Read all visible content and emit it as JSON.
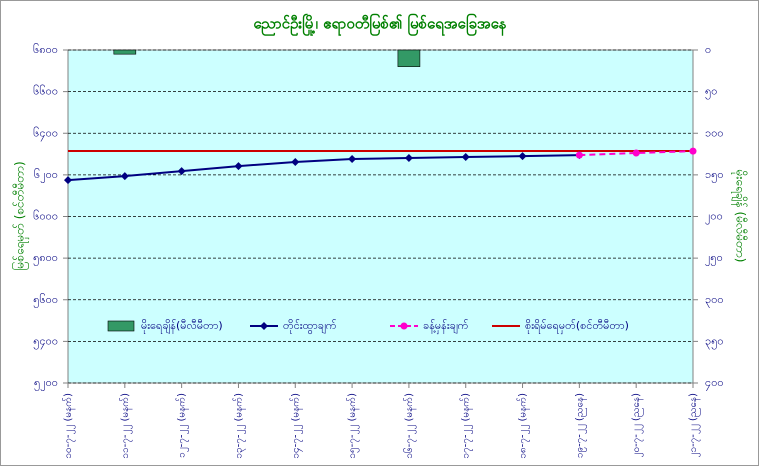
{
  "chart_data": {
    "type": "combo",
    "title": "ညောင်ဦးမြို့၊ ဧရာဝတီမြစ်၏ မြစ်ရေအခြေအနေ",
    "ylabel": "မြစ်ရေမှတ် (စင်တီမီတာ)",
    "y2label": "မိုးရေချိန် (မီလီမီတာ)",
    "categories": [
      "၁၀-၇-၂၂ (မနက်)",
      "၁၁-၇-၂၂ (မနက်)",
      "၁၂-၇-၂၂ (မနက်)",
      "၁၃-၇-၂၂ (မနက်)",
      "၁၄-၇-၂၂ (မနက်)",
      "၁၅-၇-၂၂ (မနက်)",
      "၁၆-၇-၂၂ (မနက်)",
      "၁၇-၇-၂၂ (မနက်)",
      "၁၈-၇-၂၂ (မနက်)",
      "၁၉-၇-၂၂ (ညနေ)",
      "၂၀-၇-၂၂ (ညနေ)",
      "၂၁-၇-၂၂ (ညနေ)"
    ],
    "series": [
      {
        "name": "မိုးရေချိန်(မီလီမီတာ)",
        "kind": "bar",
        "axis": "y2",
        "color": "#339966",
        "values": [
          0,
          5,
          0,
          0,
          0,
          0,
          20,
          0,
          0,
          0,
          0,
          0
        ]
      },
      {
        "name": "တိုင်းထွာချက်",
        "kind": "line",
        "color": "#000080",
        "marker": "diamond",
        "values": [
          6175,
          6194,
          6218,
          6242,
          6262,
          6276,
          6281,
          6286,
          6290,
          6295,
          null,
          null
        ]
      },
      {
        "name": "ခန့်မှန်းချက်",
        "kind": "line",
        "dashed": true,
        "color": "#ff00cc",
        "marker": "circle",
        "values": [
          null,
          null,
          null,
          null,
          null,
          null,
          null,
          null,
          null,
          6295,
          6305,
          6314
        ]
      }
    ],
    "danger_level": {
      "name": "စိုးရိမ်ရေမှတ်(စင်တီမီတာ)",
      "value": 6315,
      "color": "#cc0000"
    },
    "ylim": [
      5200,
      6800
    ],
    "yticks": [
      {
        "value": 5200,
        "label": "၅၂၀၀"
      },
      {
        "value": 5400,
        "label": "၅၄၀၀"
      },
      {
        "value": 5600,
        "label": "၅၆၀၀"
      },
      {
        "value": 5800,
        "label": "၅၈၀၀"
      },
      {
        "value": 6000,
        "label": "၆၀၀၀"
      },
      {
        "value": 6200,
        "label": "၆၂၀၀"
      },
      {
        "value": 6400,
        "label": "၆၄၀၀"
      },
      {
        "value": 6600,
        "label": "၆၆၀၀"
      },
      {
        "value": 6800,
        "label": "၆၈၀၀"
      }
    ],
    "y2lim": [
      0,
      400
    ],
    "y2_inverted": true,
    "y2ticks": [
      {
        "value": 0,
        "label": "၀"
      },
      {
        "value": 50,
        "label": "၅၀"
      },
      {
        "value": 100,
        "label": "၁၀၀"
      },
      {
        "value": 150,
        "label": "၁၅၀"
      },
      {
        "value": 200,
        "label": "၂၀၀"
      },
      {
        "value": 250,
        "label": "၂၅၀"
      },
      {
        "value": 300,
        "label": "၃၀၀"
      },
      {
        "value": 350,
        "label": "၃၅၀"
      },
      {
        "value": 400,
        "label": "၄၀၀"
      }
    ],
    "grid": true,
    "background": "#ccffff"
  }
}
